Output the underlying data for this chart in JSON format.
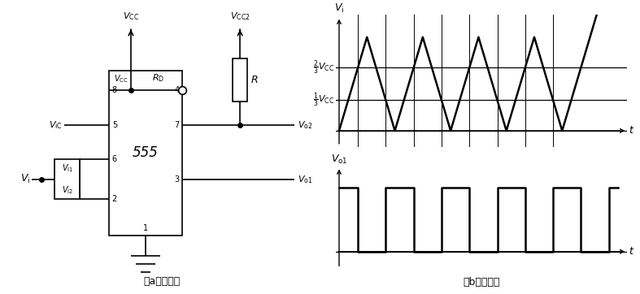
{
  "fig_width": 7.87,
  "fig_height": 3.62,
  "bg_color": "#ffffff",
  "line_color": "#000000",
  "caption_a": "（a）电路图",
  "caption_b": "（b）波形图"
}
